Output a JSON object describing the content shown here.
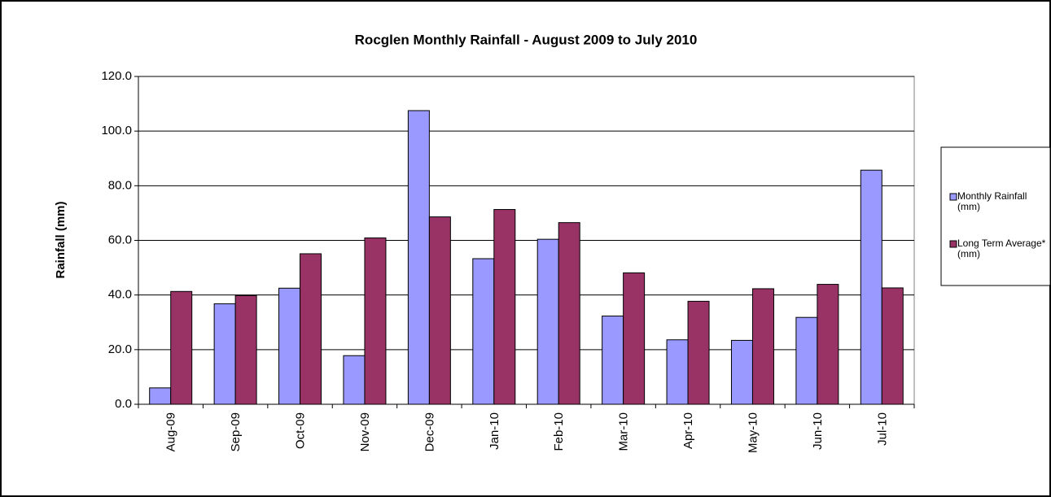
{
  "chart_data": {
    "type": "bar",
    "title": "Rocglen Monthly Rainfall - August 2009 to July 2010",
    "y_label": "Rainfall (mm)",
    "categories": [
      "Aug-09",
      "Sep-09",
      "Oct-09",
      "Nov-09",
      "Dec-09",
      "Jan-10",
      "Feb-10",
      "Mar-10",
      "Apr-10",
      "May-10",
      "Jun-10",
      "Jul-10"
    ],
    "series": [
      {
        "name": "Monthly Rainfall (mm)",
        "color": "#9999ff",
        "values": [
          6.0,
          36.8,
          42.5,
          17.8,
          107.5,
          53.3,
          60.4,
          32.3,
          23.6,
          23.4,
          31.8,
          85.7
        ]
      },
      {
        "name": "Long Term Average* (mm)",
        "color": "#993366",
        "values": [
          41.3,
          39.8,
          55.1,
          60.9,
          68.6,
          71.3,
          66.5,
          48.1,
          37.7,
          42.3,
          43.9,
          42.6
        ]
      }
    ],
    "ylim": [
      0,
      120
    ],
    "yticks": [
      {
        "value": 0,
        "label": "0.0"
      },
      {
        "value": 20,
        "label": "20.0"
      },
      {
        "value": 40,
        "label": "40.0"
      },
      {
        "value": 60,
        "label": "60.0"
      },
      {
        "value": 80,
        "label": "80.0"
      },
      {
        "value": 100,
        "label": "100.0"
      },
      {
        "value": 120,
        "label": "120.0"
      }
    ],
    "grid": true,
    "legend": "right"
  }
}
